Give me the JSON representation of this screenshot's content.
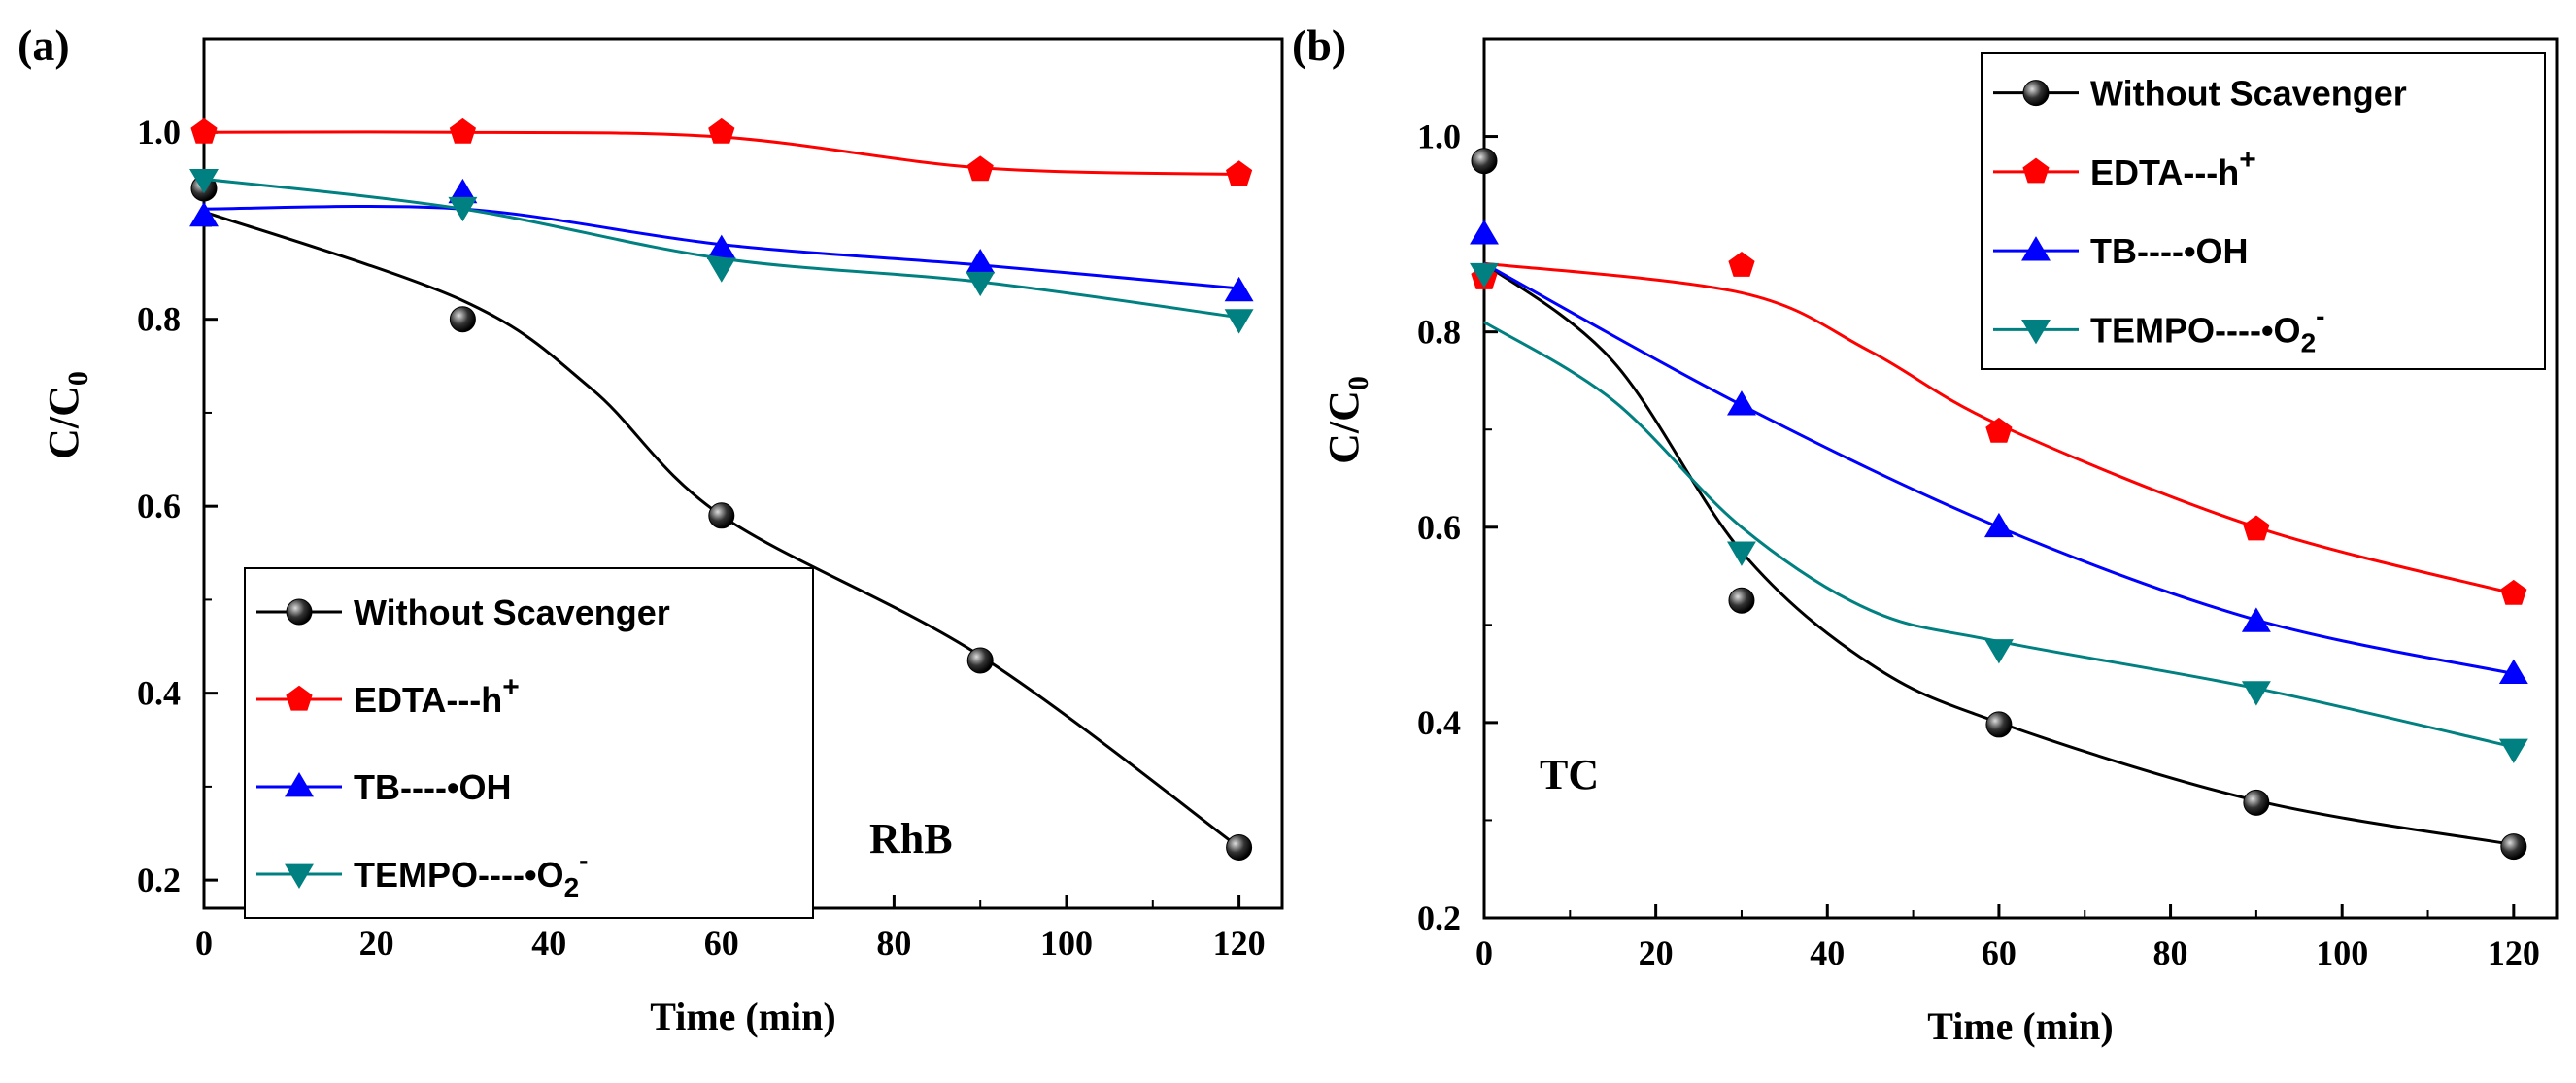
{
  "chart_data": [
    {
      "type": "line",
      "panel_label": "(a)",
      "title": "",
      "annotation": "RhB",
      "xlabel": "Time (min)",
      "ylabel_main": "C/C",
      "ylabel_sub": "0",
      "xlim": [
        0,
        125
      ],
      "ylim": [
        0.17,
        1.1
      ],
      "xticks": [
        0,
        20,
        40,
        60,
        80,
        100,
        120
      ],
      "yticks": [
        0.2,
        0.4,
        0.6,
        0.8,
        1.0
      ],
      "ytick_labels": [
        "0.2",
        "0.4",
        "0.6",
        "0.8",
        "1.0"
      ],
      "legend_position": "bottom-left",
      "series": [
        {
          "name": "Without Scavenger",
          "sup": "",
          "sub": "",
          "color": "#000000",
          "marker": "sphere",
          "x": [
            0,
            30,
            60,
            90,
            120
          ],
          "y": [
            0.94,
            0.8,
            0.59,
            0.435,
            0.235
          ],
          "fit": [
            [
              0,
              0.915
            ],
            [
              30,
              0.82
            ],
            [
              45,
              0.725
            ],
            [
              60,
              0.59
            ],
            [
              90,
              0.44
            ],
            [
              120,
              0.235
            ]
          ]
        },
        {
          "name": "EDTA---h",
          "sup": "+",
          "sub": "",
          "color": "#ff0000",
          "marker": "pentagon",
          "x": [
            0,
            30,
            60,
            90,
            120
          ],
          "y": [
            1.0,
            1.0,
            1.0,
            0.96,
            0.955
          ],
          "fit": [
            [
              0,
              1.0
            ],
            [
              30,
              1.0
            ],
            [
              60,
              0.995
            ],
            [
              90,
              0.962
            ],
            [
              120,
              0.955
            ]
          ]
        },
        {
          "name": "TB----•OH",
          "sup": "",
          "sub": "",
          "color": "#0000ff",
          "marker": "triangle-up",
          "x": [
            0,
            30,
            60,
            90,
            120
          ],
          "y": [
            0.91,
            0.935,
            0.875,
            0.86,
            0.83
          ],
          "fit": [
            [
              0,
              0.918
            ],
            [
              30,
              0.918
            ],
            [
              60,
              0.88
            ],
            [
              90,
              0.858
            ],
            [
              120,
              0.833
            ]
          ]
        },
        {
          "name": "TEMPO----•O",
          "sup": "-",
          "sub": "2",
          "color": "#008080",
          "marker": "triangle-down",
          "x": [
            0,
            30,
            60,
            90,
            120
          ],
          "y": [
            0.95,
            0.92,
            0.855,
            0.84,
            0.8
          ],
          "fit": [
            [
              0,
              0.95
            ],
            [
              30,
              0.918
            ],
            [
              60,
              0.865
            ],
            [
              90,
              0.84
            ],
            [
              120,
              0.802
            ]
          ]
        }
      ]
    },
    {
      "type": "line",
      "panel_label": "(b)",
      "title": "",
      "annotation": "TC",
      "xlabel": "Time (min)",
      "ylabel_main": "C/C",
      "ylabel_sub": "0",
      "xlim": [
        0,
        125
      ],
      "ylim": [
        0.2,
        1.1
      ],
      "xticks": [
        0,
        20,
        40,
        60,
        80,
        100,
        120
      ],
      "yticks": [
        0.2,
        0.4,
        0.6,
        0.8,
        1.0
      ],
      "ytick_labels": [
        "0.2",
        "0.4",
        "0.6",
        "0.8",
        "1.0"
      ],
      "legend_position": "top-right",
      "series": [
        {
          "name": "Without Scavenger",
          "sup": "",
          "sub": "",
          "color": "#000000",
          "marker": "sphere",
          "x": [
            0,
            30,
            60,
            90,
            120
          ],
          "y": [
            0.975,
            0.525,
            0.398,
            0.318,
            0.273
          ],
          "fit": [
            [
              0,
              0.87
            ],
            [
              15,
              0.77
            ],
            [
              30,
              0.575
            ],
            [
              45,
              0.46
            ],
            [
              60,
              0.4
            ],
            [
              90,
              0.32
            ],
            [
              120,
              0.275
            ]
          ]
        },
        {
          "name": "EDTA---h",
          "sup": "+",
          "sub": "",
          "color": "#ff0000",
          "marker": "pentagon",
          "x": [
            0,
            30,
            60,
            90,
            120
          ],
          "y": [
            0.855,
            0.868,
            0.698,
            0.598,
            0.532
          ],
          "fit": [
            [
              0,
              0.87
            ],
            [
              30,
              0.84
            ],
            [
              45,
              0.78
            ],
            [
              60,
              0.705
            ],
            [
              90,
              0.6
            ],
            [
              120,
              0.532
            ]
          ]
        },
        {
          "name": "TB----•OH",
          "sup": "",
          "sub": "",
          "color": "#0000ff",
          "marker": "triangle-up",
          "x": [
            0,
            30,
            60,
            90,
            120
          ],
          "y": [
            0.9,
            0.725,
            0.6,
            0.503,
            0.45
          ],
          "fit": [
            [
              0,
              0.87
            ],
            [
              30,
              0.725
            ],
            [
              60,
              0.6
            ],
            [
              90,
              0.505
            ],
            [
              120,
              0.45
            ]
          ]
        },
        {
          "name": "TEMPO----•O",
          "sup": "-",
          "sub": "2",
          "color": "#008080",
          "marker": "triangle-down",
          "x": [
            0,
            30,
            60,
            90,
            120
          ],
          "y": [
            0.86,
            0.575,
            0.475,
            0.432,
            0.373
          ],
          "fit": [
            [
              0,
              0.81
            ],
            [
              15,
              0.73
            ],
            [
              30,
              0.6
            ],
            [
              45,
              0.515
            ],
            [
              60,
              0.483
            ],
            [
              90,
              0.435
            ],
            [
              120,
              0.375
            ]
          ]
        }
      ]
    }
  ]
}
